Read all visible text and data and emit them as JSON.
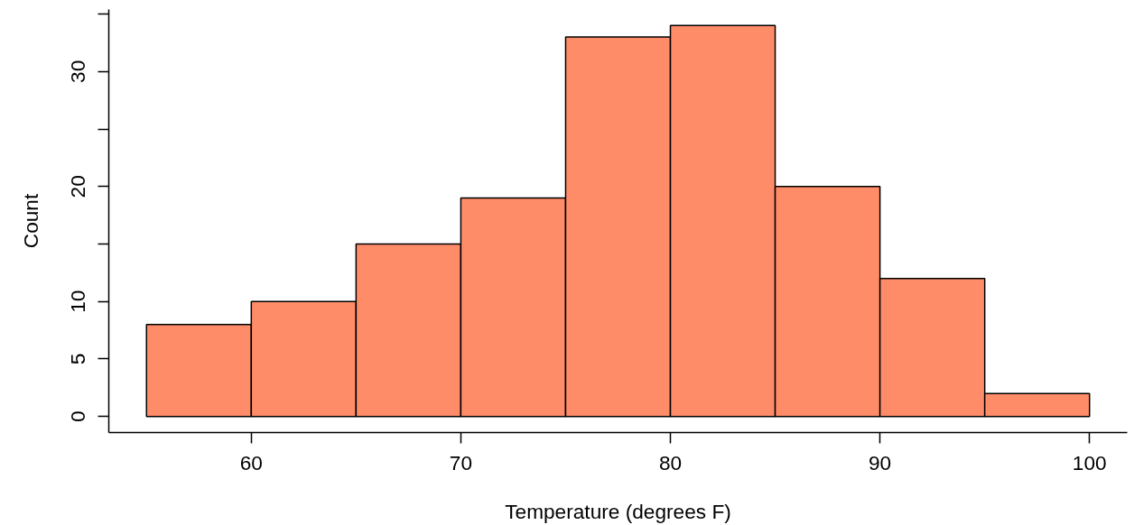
{
  "chart_data": {
    "type": "histogram",
    "xlabel": "Temperature (degrees F)",
    "ylabel": "Count",
    "bins": [
      55,
      60,
      65,
      70,
      75,
      80,
      85,
      90,
      95,
      100
    ],
    "values": [
      8,
      10,
      15,
      19,
      33,
      34,
      20,
      12,
      2
    ],
    "color": "#ff8c69",
    "xlim": [
      53.2,
      101.8
    ],
    "xticks": [
      60,
      70,
      80,
      90,
      100
    ],
    "ylim": [
      -1.4,
      35.4
    ],
    "yticks": [
      0,
      5,
      10,
      {
        "value": 15,
        "label": null
      },
      20,
      {
        "value": 25,
        "label": null
      },
      30,
      {
        "value": 35,
        "label": null
      }
    ],
    "grid": false
  }
}
